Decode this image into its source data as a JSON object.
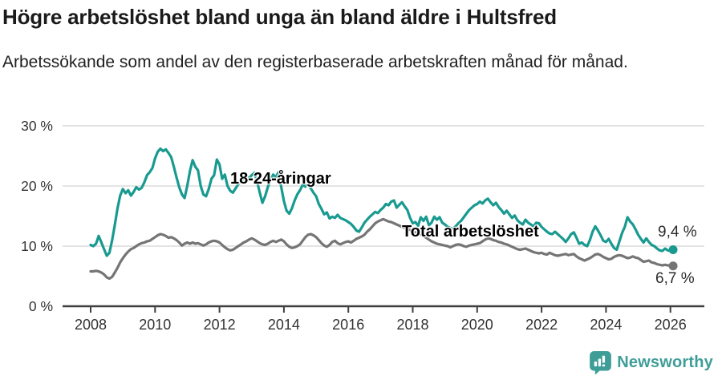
{
  "header": {
    "title": "Högre arbetslöshet bland unga än bland äldre i Hultsfred",
    "subtitle": "Arbetssökande som andel av den registerbaserade arbetskraften månad för månad."
  },
  "chart_data": {
    "type": "line",
    "title": "Högre arbetslöshet bland unga än bland äldre i Hultsfred",
    "subtitle": "Arbetssökande som andel av den registerbaserade arbetskraften månad för månad.",
    "x_start_year": 2008,
    "x_interval_months": 1,
    "x_end": "2026-02",
    "ylim": [
      0,
      30
    ],
    "grid": "horizontal",
    "legend_position": "inline-annotations",
    "grid_color": "#dcdcdc",
    "axis_color": "#3f3f3f",
    "tick_color": "#333333",
    "y_ticks": [
      {
        "value": 0,
        "label": "0 %"
      },
      {
        "value": 10,
        "label": "10 %"
      },
      {
        "value": 20,
        "label": "20 %"
      },
      {
        "value": 30,
        "label": "30 %"
      }
    ],
    "x_ticks": [
      {
        "year": 2008,
        "label": "2008"
      },
      {
        "year": 2010,
        "label": "2010"
      },
      {
        "year": 2012,
        "label": "2012"
      },
      {
        "year": 2014,
        "label": "2014"
      },
      {
        "year": 2016,
        "label": "2016"
      },
      {
        "year": 2018,
        "label": "2018"
      },
      {
        "year": 2020,
        "label": "2020"
      },
      {
        "year": 2022,
        "label": "2022"
      },
      {
        "year": 2024,
        "label": "2024"
      },
      {
        "year": 2026,
        "label": "2026"
      }
    ],
    "series": [
      {
        "id": "total",
        "name": "Total arbetslöshet",
        "color": "#757575",
        "end_label": "6,7 %",
        "values": [
          5.8,
          5.8,
          5.9,
          5.8,
          5.6,
          5.3,
          4.8,
          4.6,
          4.9,
          5.6,
          6.4,
          7.3,
          8.0,
          8.6,
          9.1,
          9.5,
          9.7,
          10.0,
          10.3,
          10.5,
          10.6,
          10.8,
          10.9,
          11.2,
          11.5,
          11.8,
          12.0,
          11.9,
          11.7,
          11.4,
          11.5,
          11.3,
          11.0,
          10.6,
          10.1,
          10.4,
          10.6,
          10.4,
          10.6,
          10.4,
          10.5,
          10.3,
          10.1,
          10.3,
          10.6,
          10.8,
          10.9,
          10.8,
          10.6,
          10.2,
          9.8,
          9.5,
          9.3,
          9.4,
          9.7,
          10.0,
          10.3,
          10.6,
          10.8,
          11.1,
          11.3,
          11.1,
          10.8,
          10.5,
          10.3,
          10.2,
          10.4,
          10.7,
          10.9,
          10.7,
          10.9,
          11.1,
          10.8,
          10.3,
          9.9,
          9.7,
          9.8,
          10.0,
          10.3,
          10.9,
          11.5,
          11.9,
          12.0,
          11.8,
          11.5,
          11.0,
          10.5,
          10.1,
          9.9,
          10.2,
          10.7,
          10.9,
          10.5,
          10.3,
          10.5,
          10.7,
          10.8,
          10.6,
          10.9,
          11.2,
          11.4,
          11.6,
          11.9,
          12.4,
          12.8,
          13.3,
          13.8,
          14.1,
          14.3,
          14.5,
          14.3,
          14.1,
          14.0,
          13.8,
          13.6,
          13.4,
          13.2,
          13.0,
          12.9,
          12.7,
          12.5,
          12.3,
          12.1,
          11.9,
          11.7,
          11.4,
          11.1,
          10.8,
          10.6,
          10.4,
          10.3,
          10.2,
          10.1,
          10.0,
          9.8,
          10.0,
          10.2,
          10.3,
          10.2,
          10.0,
          9.9,
          10.1,
          10.2,
          10.3,
          10.4,
          10.5,
          10.8,
          11.1,
          11.3,
          11.2,
          11.0,
          10.9,
          10.7,
          10.6,
          10.4,
          10.3,
          10.1,
          9.9,
          9.7,
          9.5,
          9.4,
          9.5,
          9.6,
          9.4,
          9.2,
          9.0,
          8.9,
          8.8,
          8.9,
          8.7,
          8.6,
          8.9,
          8.7,
          8.5,
          8.4,
          8.5,
          8.6,
          8.7,
          8.5,
          8.6,
          8.7,
          8.3,
          8.0,
          7.8,
          7.6,
          7.8,
          8.0,
          8.3,
          8.6,
          8.7,
          8.5,
          8.2,
          8.0,
          7.8,
          7.9,
          8.2,
          8.4,
          8.5,
          8.4,
          8.2,
          8.0,
          8.1,
          8.3,
          8.1,
          8.0,
          7.7,
          7.4,
          7.5,
          7.6,
          7.3,
          7.2,
          7.0,
          6.9,
          6.8,
          6.9,
          6.8,
          6.8,
          6.7
        ]
      },
      {
        "id": "youth",
        "name": "18-24-åringar",
        "color": "#189a90",
        "end_label": "9,4 %",
        "values": [
          10.2,
          10.0,
          10.4,
          11.7,
          10.6,
          9.5,
          8.4,
          8.9,
          11.0,
          13.5,
          16.3,
          18.4,
          19.5,
          18.8,
          19.3,
          18.4,
          19.0,
          19.8,
          19.4,
          19.7,
          20.6,
          21.8,
          22.3,
          23.0,
          24.6,
          25.7,
          26.2,
          25.8,
          26.1,
          25.5,
          24.8,
          23.2,
          21.4,
          19.8,
          18.6,
          18.0,
          20.0,
          22.5,
          24.3,
          23.2,
          22.6,
          20.0,
          18.6,
          18.3,
          19.5,
          21.2,
          21.8,
          24.4,
          23.6,
          21.2,
          21.9,
          20.0,
          19.2,
          18.9,
          19.6,
          20.3,
          20.8,
          21.2,
          21.6,
          21.3,
          21.8,
          22.2,
          20.8,
          18.9,
          17.2,
          18.3,
          19.8,
          21.0,
          21.9,
          21.5,
          22.3,
          19.8,
          17.5,
          15.9,
          15.4,
          16.3,
          17.6,
          18.6,
          19.3,
          20.2,
          19.9,
          20.3,
          19.6,
          18.9,
          18.3,
          17.0,
          16.2,
          15.3,
          15.6,
          14.6,
          14.9,
          14.7,
          15.2,
          14.7,
          14.5,
          14.3,
          14.0,
          13.7,
          13.2,
          12.6,
          12.4,
          13.1,
          13.9,
          14.4,
          14.9,
          15.3,
          15.7,
          15.5,
          16.0,
          16.4,
          17.0,
          16.8,
          17.4,
          17.6,
          16.4,
          16.9,
          17.3,
          16.6,
          16.0,
          14.7,
          13.8,
          14.0,
          13.4,
          14.8,
          14.2,
          14.9,
          13.5,
          13.9,
          14.9,
          14.4,
          14.8,
          13.9,
          13.6,
          13.2,
          13.0,
          12.9,
          13.3,
          13.8,
          14.2,
          14.8,
          15.4,
          16.0,
          16.4,
          16.8,
          17.0,
          17.4,
          17.1,
          17.6,
          17.9,
          17.3,
          16.8,
          17.2,
          16.5,
          16.0,
          15.4,
          15.9,
          15.3,
          14.7,
          15.1,
          14.3,
          13.9,
          13.6,
          14.4,
          13.9,
          13.6,
          13.3,
          13.9,
          13.8,
          13.2,
          12.8,
          12.4,
          12.1,
          12.0,
          12.4,
          12.0,
          11.6,
          11.2,
          10.7,
          11.3,
          12.0,
          12.3,
          11.4,
          10.4,
          10.6,
          10.2,
          10.0,
          11.0,
          12.4,
          13.3,
          12.6,
          11.8,
          10.9,
          10.7,
          11.2,
          10.4,
          9.7,
          9.4,
          10.8,
          12.2,
          13.2,
          14.8,
          14.1,
          13.6,
          12.8,
          11.9,
          11.2,
          10.6,
          11.3,
          10.7,
          10.2,
          10.0,
          9.6,
          9.3,
          9.2,
          9.6,
          9.3,
          9.2,
          9.4
        ]
      }
    ]
  },
  "annotations": {
    "youth_label": "18-24-åringar",
    "total_label": "Total arbetslöshet",
    "youth_end_value": "9,4 %",
    "total_end_value": "6,7 %"
  },
  "footer": {
    "brand": "Newsworthy",
    "brand_color": "#3f9d98"
  }
}
